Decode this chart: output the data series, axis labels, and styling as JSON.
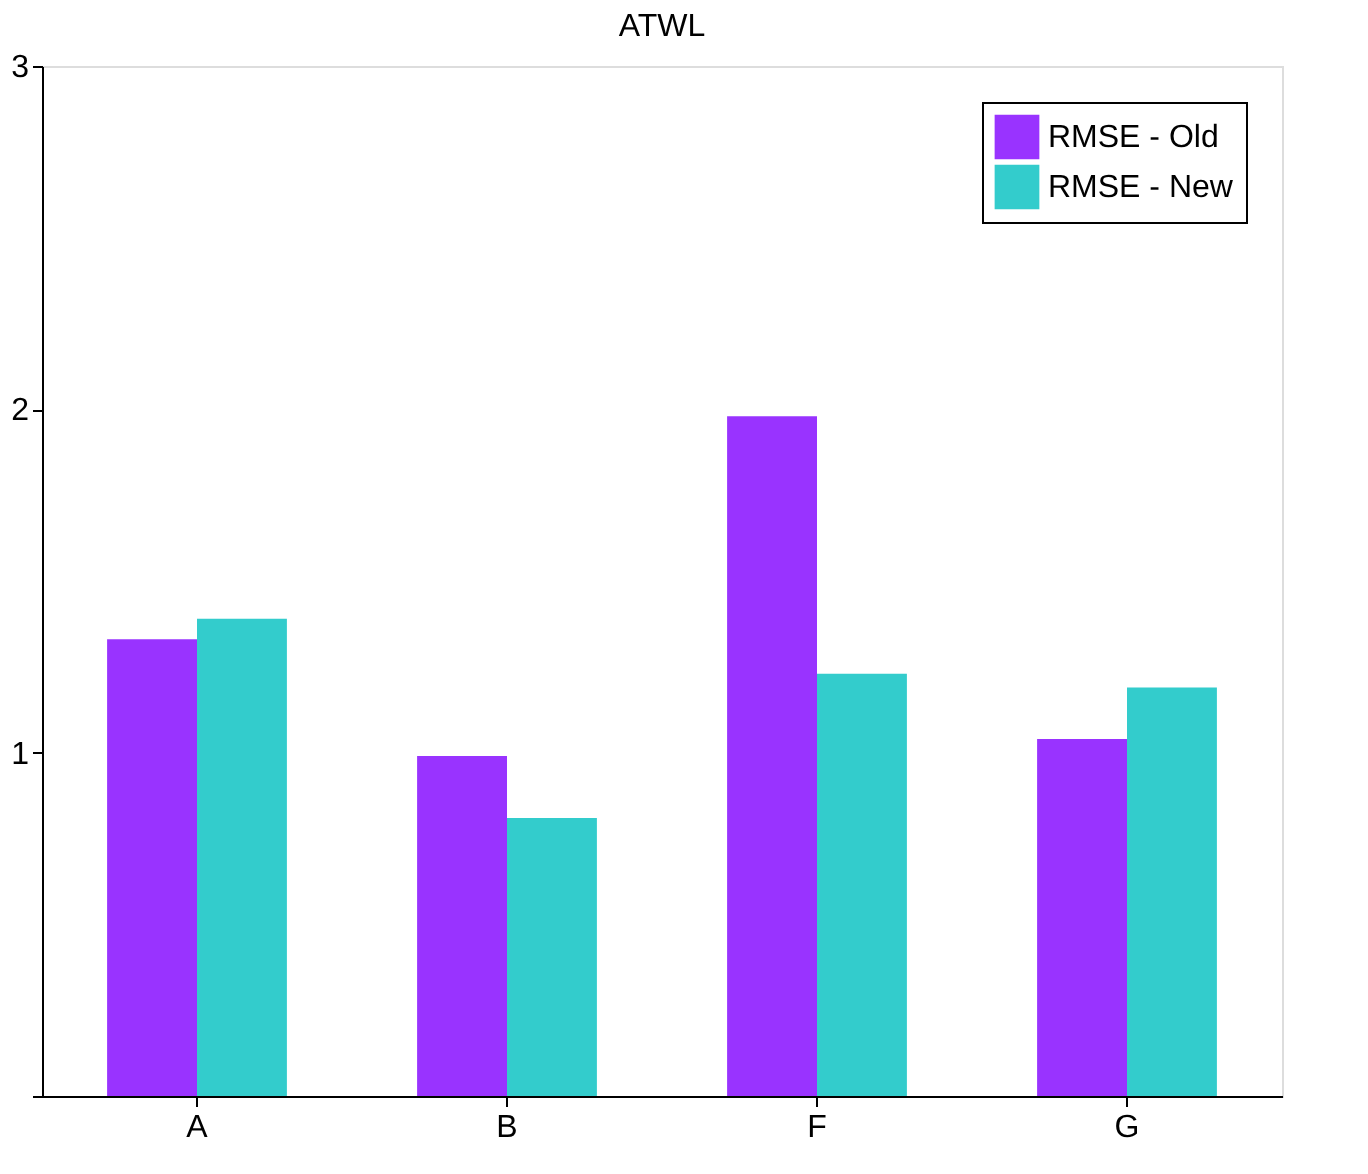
{
  "chart_data": {
    "type": "bar",
    "title": "ATWL",
    "categories": [
      "A",
      "B",
      "F",
      "G"
    ],
    "series": [
      {
        "name": "RMSE - Old",
        "color": "#9933ff",
        "values": [
          1.33,
          0.99,
          1.98,
          1.04
        ]
      },
      {
        "name": "RMSE - New",
        "color": "#33cccc",
        "values": [
          1.39,
          0.81,
          1.23,
          1.19
        ]
      }
    ],
    "ylim": [
      0,
      3
    ],
    "yticks": [
      {
        "value": 0,
        "label": null
      },
      1,
      2,
      3
    ],
    "grid": false,
    "legend": "top right"
  }
}
